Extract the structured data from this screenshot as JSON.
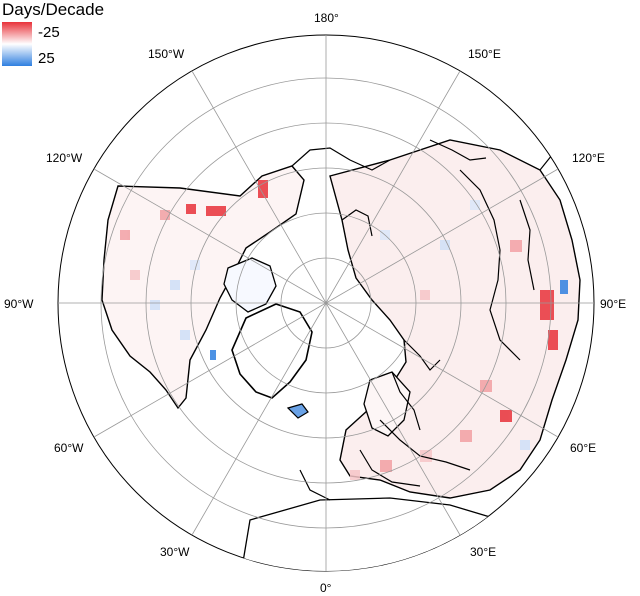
{
  "legend": {
    "title": "Days/Decade",
    "min_label": "-25",
    "max_label": "25",
    "colors": {
      "negative": "#e8323a",
      "neutral": "#ffffff",
      "positive": "#2f7fe0"
    }
  },
  "graticule": {
    "meridian_labels": [
      "180°",
      "150°E",
      "120°E",
      "90°E",
      "60°E",
      "30°E",
      "0°",
      "30°W",
      "60°W",
      "90°W",
      "120°W",
      "150°W"
    ]
  },
  "map": {
    "projection": "north-polar-azimuthal",
    "coastline_color": "#000000",
    "grid_color": "#999999"
  }
}
